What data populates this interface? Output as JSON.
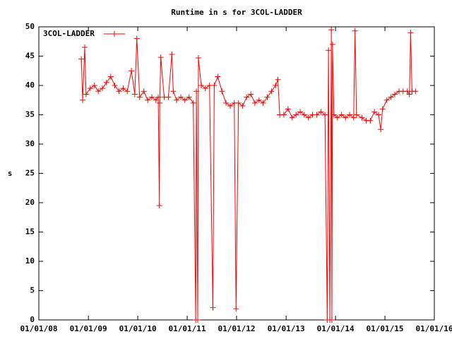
{
  "chart_data": {
    "type": "line",
    "title": "Runtime in s for 3COL-LADDER",
    "y_label": "s",
    "x": [
      "2008-11-10",
      "2008-11-20",
      "2008-12-05",
      "2008-12-15",
      "2009-01-15",
      "2009-02-15",
      "2009-03-15",
      "2009-04-15",
      "2009-05-15",
      "2009-06-15",
      "2009-07-15",
      "2009-08-15",
      "2009-09-15",
      "2009-10-15",
      "2009-11-15",
      "2009-12-10",
      "2009-12-25",
      "2010-01-15",
      "2010-02-15",
      "2010-03-15",
      "2010-04-15",
      "2010-05-15",
      "2010-06-01",
      "2010-06-10",
      "2010-06-12",
      "2010-06-20",
      "2010-07-15",
      "2010-08-15",
      "2010-09-10",
      "2010-09-20",
      "2010-10-15",
      "2010-11-15",
      "2010-12-15",
      "2011-01-15",
      "2011-02-15",
      "2011-03-05",
      "2011-03-10",
      "2011-03-20",
      "2011-03-25",
      "2011-04-15",
      "2011-05-15",
      "2011-06-15",
      "2011-07-10",
      "2011-07-20",
      "2011-08-15",
      "2011-09-15",
      "2011-10-15",
      "2011-11-15",
      "2011-12-15",
      "2011-12-28",
      "2012-01-15",
      "2012-02-15",
      "2012-03-15",
      "2012-04-15",
      "2012-05-15",
      "2012-06-15",
      "2012-07-15",
      "2012-08-15",
      "2012-09-15",
      "2012-10-15",
      "2012-11-01",
      "2012-11-15",
      "2012-12-15",
      "2013-01-15",
      "2013-02-15",
      "2013-03-15",
      "2013-04-15",
      "2013-05-15",
      "2013-06-15",
      "2013-07-15",
      "2013-08-15",
      "2013-09-15",
      "2013-10-15",
      "2013-11-01",
      "2013-11-10",
      "2013-11-20",
      "2013-12-01",
      "2013-12-05",
      "2013-12-10",
      "2013-12-20",
      "2014-01-15",
      "2014-02-15",
      "2014-03-15",
      "2014-04-15",
      "2014-05-15",
      "2014-05-25",
      "2014-06-05",
      "2014-07-15",
      "2014-08-15",
      "2014-09-15",
      "2014-10-15",
      "2014-11-15",
      "2014-12-01",
      "2014-12-15",
      "2015-01-15",
      "2015-02-15",
      "2015-03-15",
      "2015-04-15",
      "2015-05-15",
      "2015-06-15",
      "2015-07-01",
      "2015-07-10",
      "2015-07-20",
      "2015-08-15"
    ],
    "series": [
      {
        "name": "3COL-LADDER",
        "color": "#ff0000",
        "values": [
          44.5,
          37.5,
          46.5,
          38.5,
          39.5,
          40,
          39,
          39.5,
          40.5,
          41.5,
          40,
          39,
          39.5,
          39,
          42.5,
          38.5,
          48,
          38,
          39,
          37.5,
          38,
          37.5,
          38,
          19.5,
          37,
          44.8,
          38,
          38,
          45.3,
          39,
          37.5,
          38,
          37.5,
          38,
          37,
          0,
          39,
          0,
          44.7,
          40,
          39.5,
          40,
          2.1,
          40,
          41.5,
          39,
          37,
          36.5,
          37,
          1.9,
          37,
          36.5,
          38,
          38.5,
          37,
          37.5,
          37,
          38,
          39,
          40,
          41,
          35,
          35,
          36,
          34.5,
          35,
          35.5,
          35,
          34.5,
          35,
          35,
          35.5,
          35,
          0,
          46,
          0,
          49.5,
          0,
          47,
          35,
          34.5,
          35,
          34.5,
          35,
          34.5,
          49.3,
          35,
          34.5,
          34,
          34,
          35.5,
          35,
          32.5,
          36,
          37.5,
          38,
          38.5,
          39,
          39,
          39,
          38.5,
          49,
          39,
          39
        ]
      }
    ],
    "xlim": [
      "2008-01-01",
      "2016-01-01"
    ],
    "xticks": [
      {
        "value": "2008-01-01",
        "label": "01/01/08"
      },
      {
        "value": "2009-01-01",
        "label": "01/01/09"
      },
      {
        "value": "2010-01-01",
        "label": "01/01/10"
      },
      {
        "value": "2011-01-01",
        "label": "01/01/11"
      },
      {
        "value": "2012-01-01",
        "label": "01/01/12"
      },
      {
        "value": "2013-01-01",
        "label": "01/01/13"
      },
      {
        "value": "2014-01-01",
        "label": "01/01/14"
      },
      {
        "value": "2015-01-01",
        "label": "01/01/15"
      },
      {
        "value": "2016-01-01",
        "label": "01/01/16"
      }
    ],
    "ylim": [
      0,
      50
    ],
    "yticks": [
      0,
      5,
      10,
      15,
      20,
      25,
      30,
      35,
      40,
      45,
      50
    ],
    "legend": "top-left",
    "grid": false
  }
}
